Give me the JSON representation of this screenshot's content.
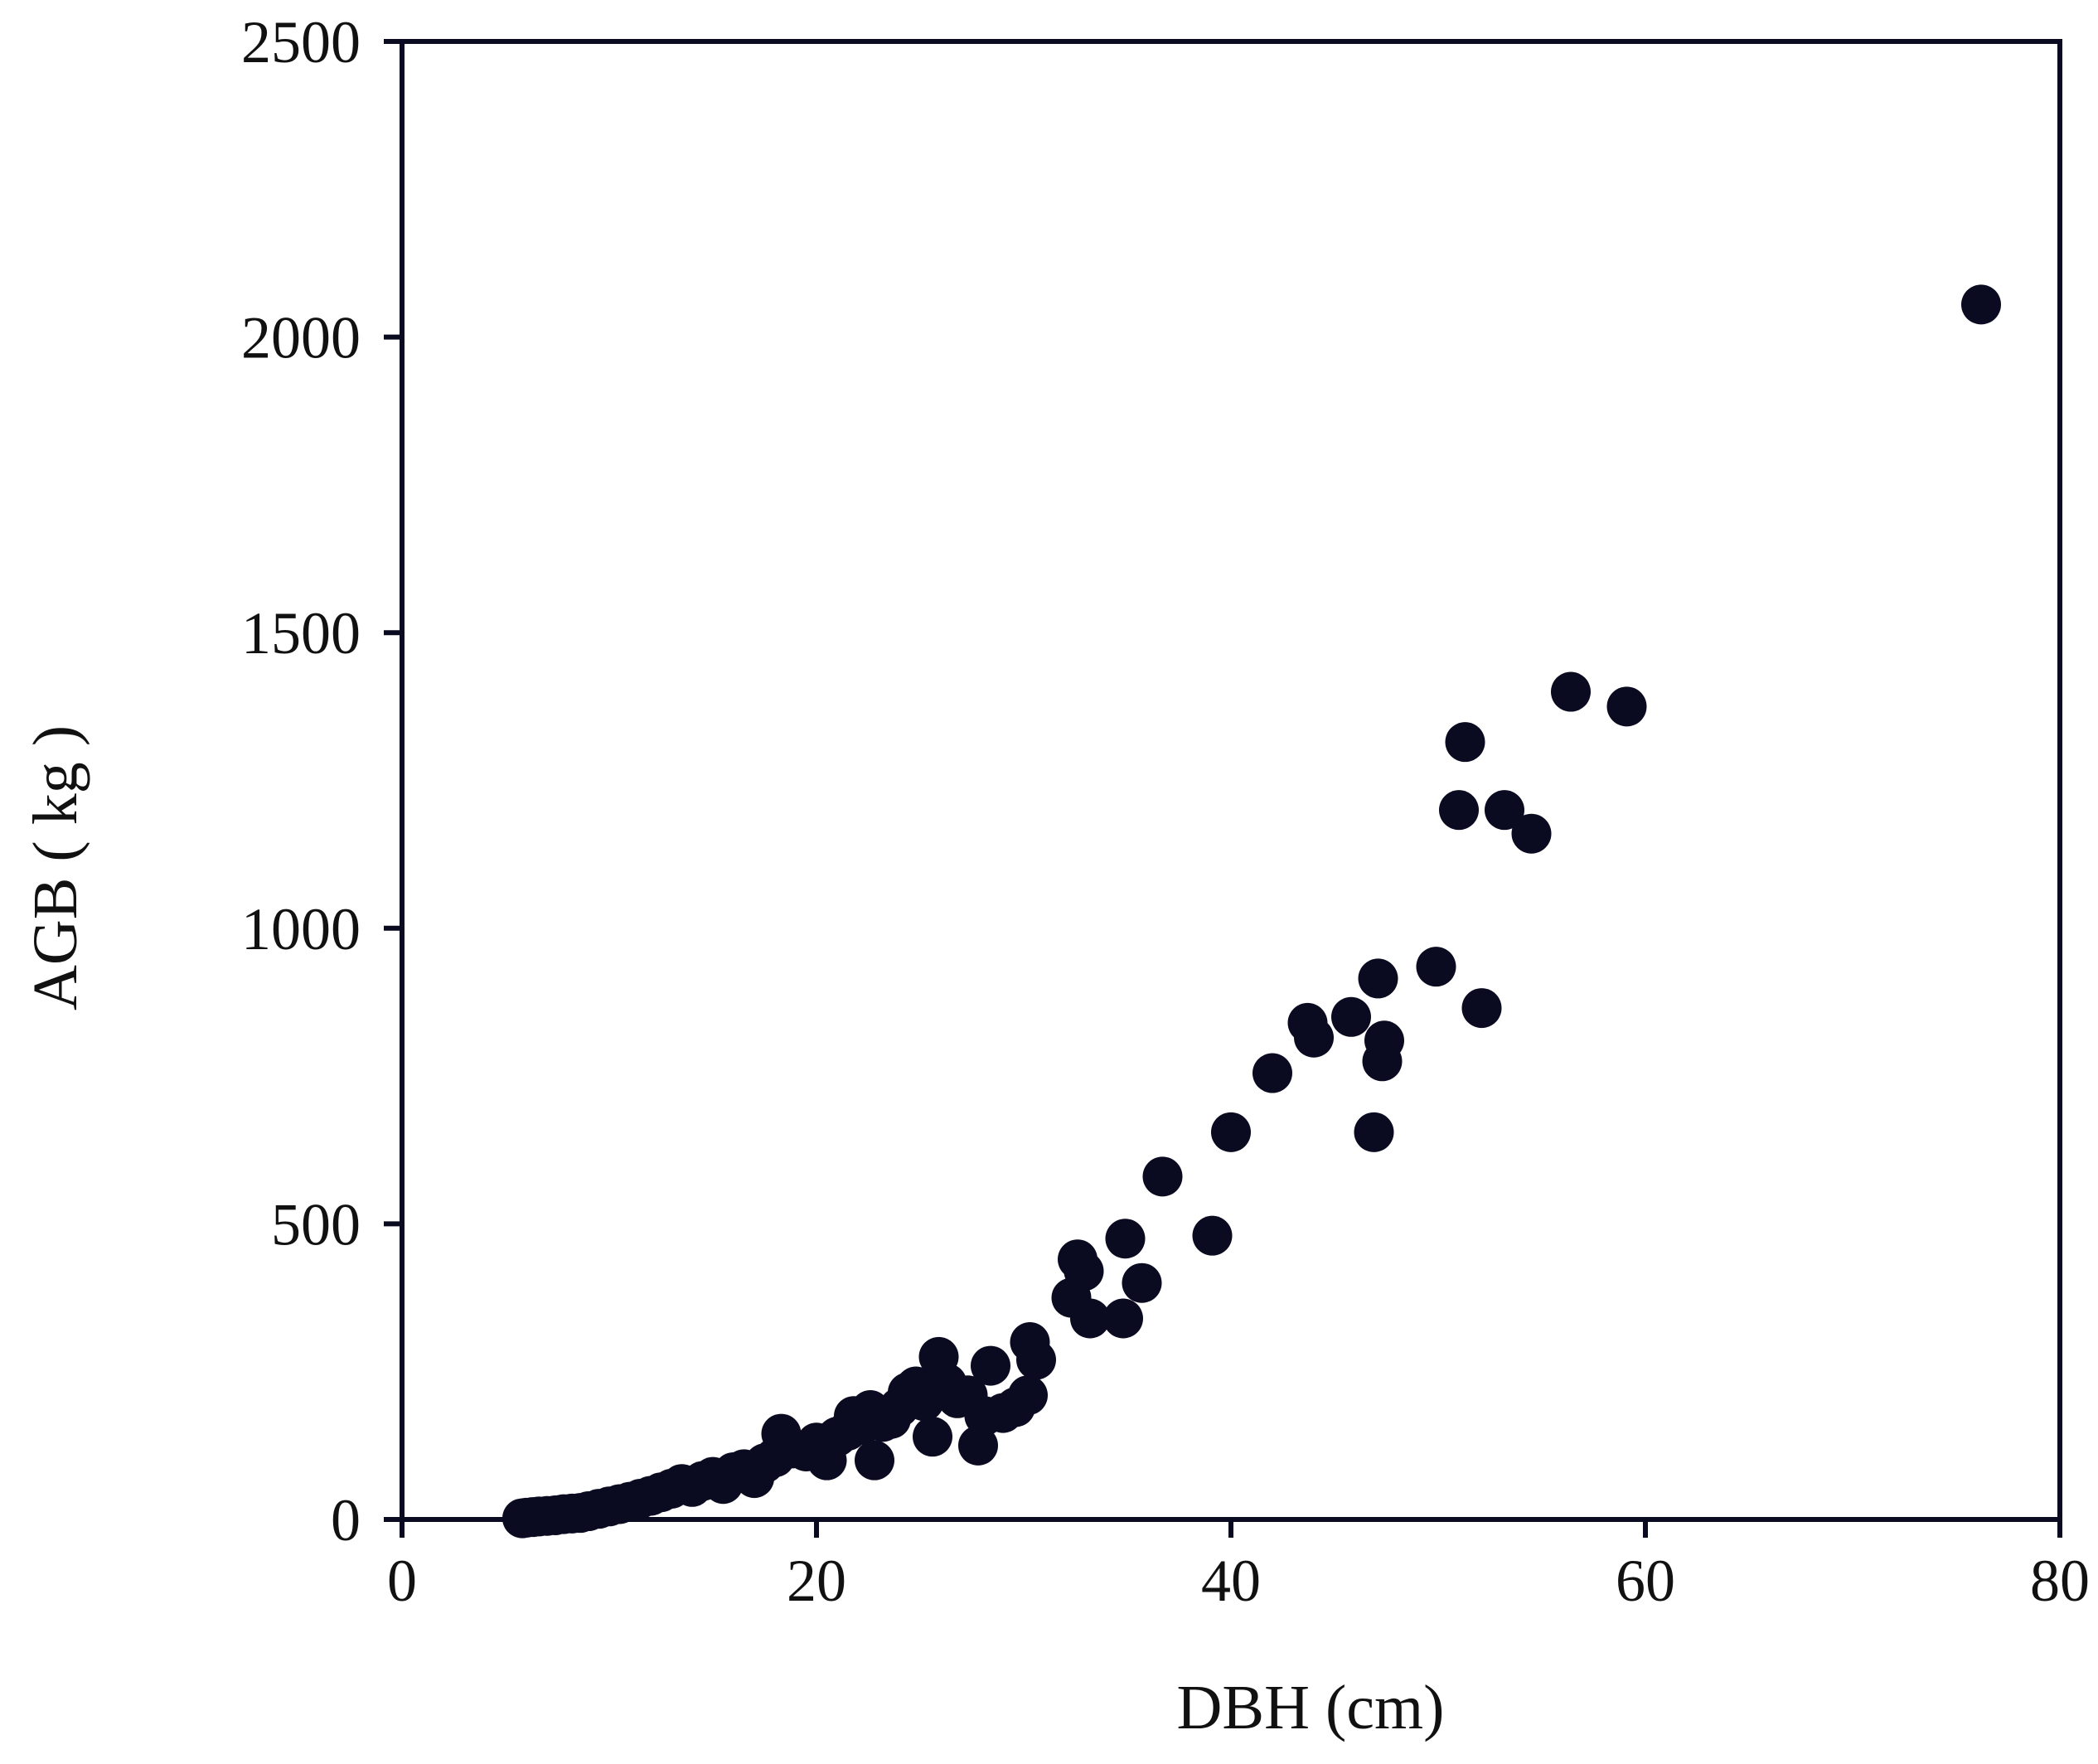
{
  "chart_data": {
    "type": "scatter",
    "title": "",
    "xlabel": "DBH (cm)",
    "ylabel": "AGB ( kg )",
    "xlim": [
      0,
      80
    ],
    "ylim": [
      0,
      2500
    ],
    "x_ticks": [
      0,
      20,
      40,
      60,
      80
    ],
    "y_ticks": [
      0,
      500,
      1000,
      1500,
      2000,
      2500
    ],
    "grid": false,
    "legend": "none",
    "marker_color": "#0a0a20",
    "series": [
      {
        "points": [
          [
            5.8,
            2
          ],
          [
            6.0,
            3
          ],
          [
            6.3,
            4
          ],
          [
            6.6,
            5
          ],
          [
            7.0,
            6
          ],
          [
            7.4,
            7
          ],
          [
            7.8,
            9
          ],
          [
            8.2,
            10
          ],
          [
            8.6,
            11
          ],
          [
            9.0,
            14
          ],
          [
            9.5,
            18
          ],
          [
            10.0,
            22
          ],
          [
            10.5,
            26
          ],
          [
            11.0,
            30
          ],
          [
            11.5,
            35
          ],
          [
            12.0,
            40
          ],
          [
            12.5,
            46
          ],
          [
            13.0,
            52
          ],
          [
            13.5,
            60
          ],
          [
            14.0,
            55
          ],
          [
            14.5,
            65
          ],
          [
            15.0,
            72
          ],
          [
            15.5,
            60
          ],
          [
            16.0,
            80
          ],
          [
            16.5,
            85
          ],
          [
            17.0,
            70
          ],
          [
            17.5,
            95
          ],
          [
            18.0,
            105
          ],
          [
            18.3,
            145
          ],
          [
            18.8,
            120
          ],
          [
            19.5,
            115
          ],
          [
            20.0,
            130
          ],
          [
            20.5,
            100
          ],
          [
            21.0,
            140
          ],
          [
            21.5,
            150
          ],
          [
            21.8,
            175
          ],
          [
            22.2,
            160
          ],
          [
            22.6,
            185
          ],
          [
            22.8,
            100
          ],
          [
            23.2,
            165
          ],
          [
            23.6,
            170
          ],
          [
            24.0,
            190
          ],
          [
            24.4,
            215
          ],
          [
            24.8,
            225
          ],
          [
            25.2,
            200
          ],
          [
            25.6,
            140
          ],
          [
            25.9,
            275
          ],
          [
            26.3,
            230
          ],
          [
            26.8,
            205
          ],
          [
            27.3,
            210
          ],
          [
            27.8,
            125
          ],
          [
            28.1,
            175
          ],
          [
            28.4,
            260
          ],
          [
            29.0,
            180
          ],
          [
            29.6,
            190
          ],
          [
            30.2,
            210
          ],
          [
            30.3,
            300
          ],
          [
            30.6,
            270
          ],
          [
            32.3,
            375
          ],
          [
            32.6,
            440
          ],
          [
            32.9,
            420
          ],
          [
            33.2,
            340
          ],
          [
            34.8,
            340
          ],
          [
            34.9,
            475
          ],
          [
            35.7,
            400
          ],
          [
            36.7,
            580
          ],
          [
            39.1,
            480
          ],
          [
            40.0,
            655
          ],
          [
            42.0,
            755
          ],
          [
            43.7,
            840
          ],
          [
            44.0,
            815
          ],
          [
            45.8,
            850
          ],
          [
            46.9,
            655
          ],
          [
            47.1,
            915
          ],
          [
            47.3,
            775
          ],
          [
            47.4,
            810
          ],
          [
            49.9,
            935
          ],
          [
            51.0,
            1200
          ],
          [
            51.3,
            1315
          ],
          [
            52.1,
            865
          ],
          [
            53.2,
            1200
          ],
          [
            54.5,
            1160
          ],
          [
            56.4,
            1400
          ],
          [
            59.1,
            1375
          ],
          [
            76.2,
            2055
          ]
        ]
      }
    ]
  }
}
